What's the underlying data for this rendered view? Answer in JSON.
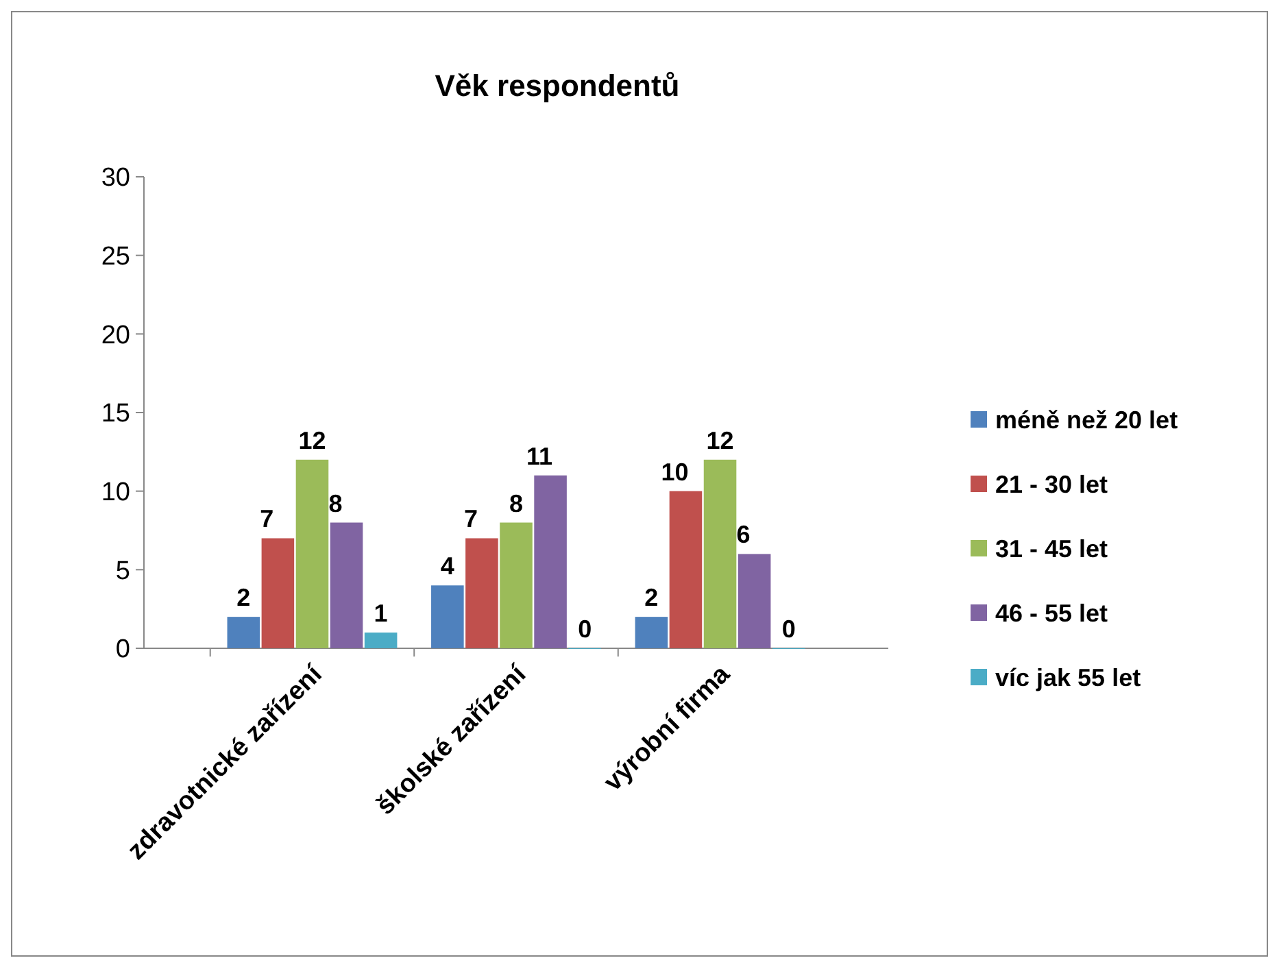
{
  "chart_data": {
    "type": "bar",
    "title": "Věk respondentů",
    "categories": [
      "zdravotnické zařízení",
      "školské zařízení",
      "výrobní firma"
    ],
    "series": [
      {
        "name": "méně než 20 let",
        "color": "#4f81bd",
        "values": [
          2,
          4,
          2
        ]
      },
      {
        "name": "21 - 30 let",
        "color": "#c0504d",
        "values": [
          7,
          7,
          10
        ]
      },
      {
        "name": "31 - 45 let",
        "color": "#9bbb59",
        "values": [
          12,
          8,
          12
        ]
      },
      {
        "name": "46 - 55 let",
        "color": "#8064a2",
        "values": [
          8,
          11,
          6
        ]
      },
      {
        "name": "víc jak 55 let",
        "color": "#4bacc6",
        "values": [
          1,
          0,
          0
        ]
      }
    ],
    "ylim": [
      0,
      30
    ],
    "yticks": [
      0,
      5,
      10,
      15,
      20,
      25,
      30
    ],
    "grid": false,
    "legend": "right",
    "data_labels": true
  }
}
